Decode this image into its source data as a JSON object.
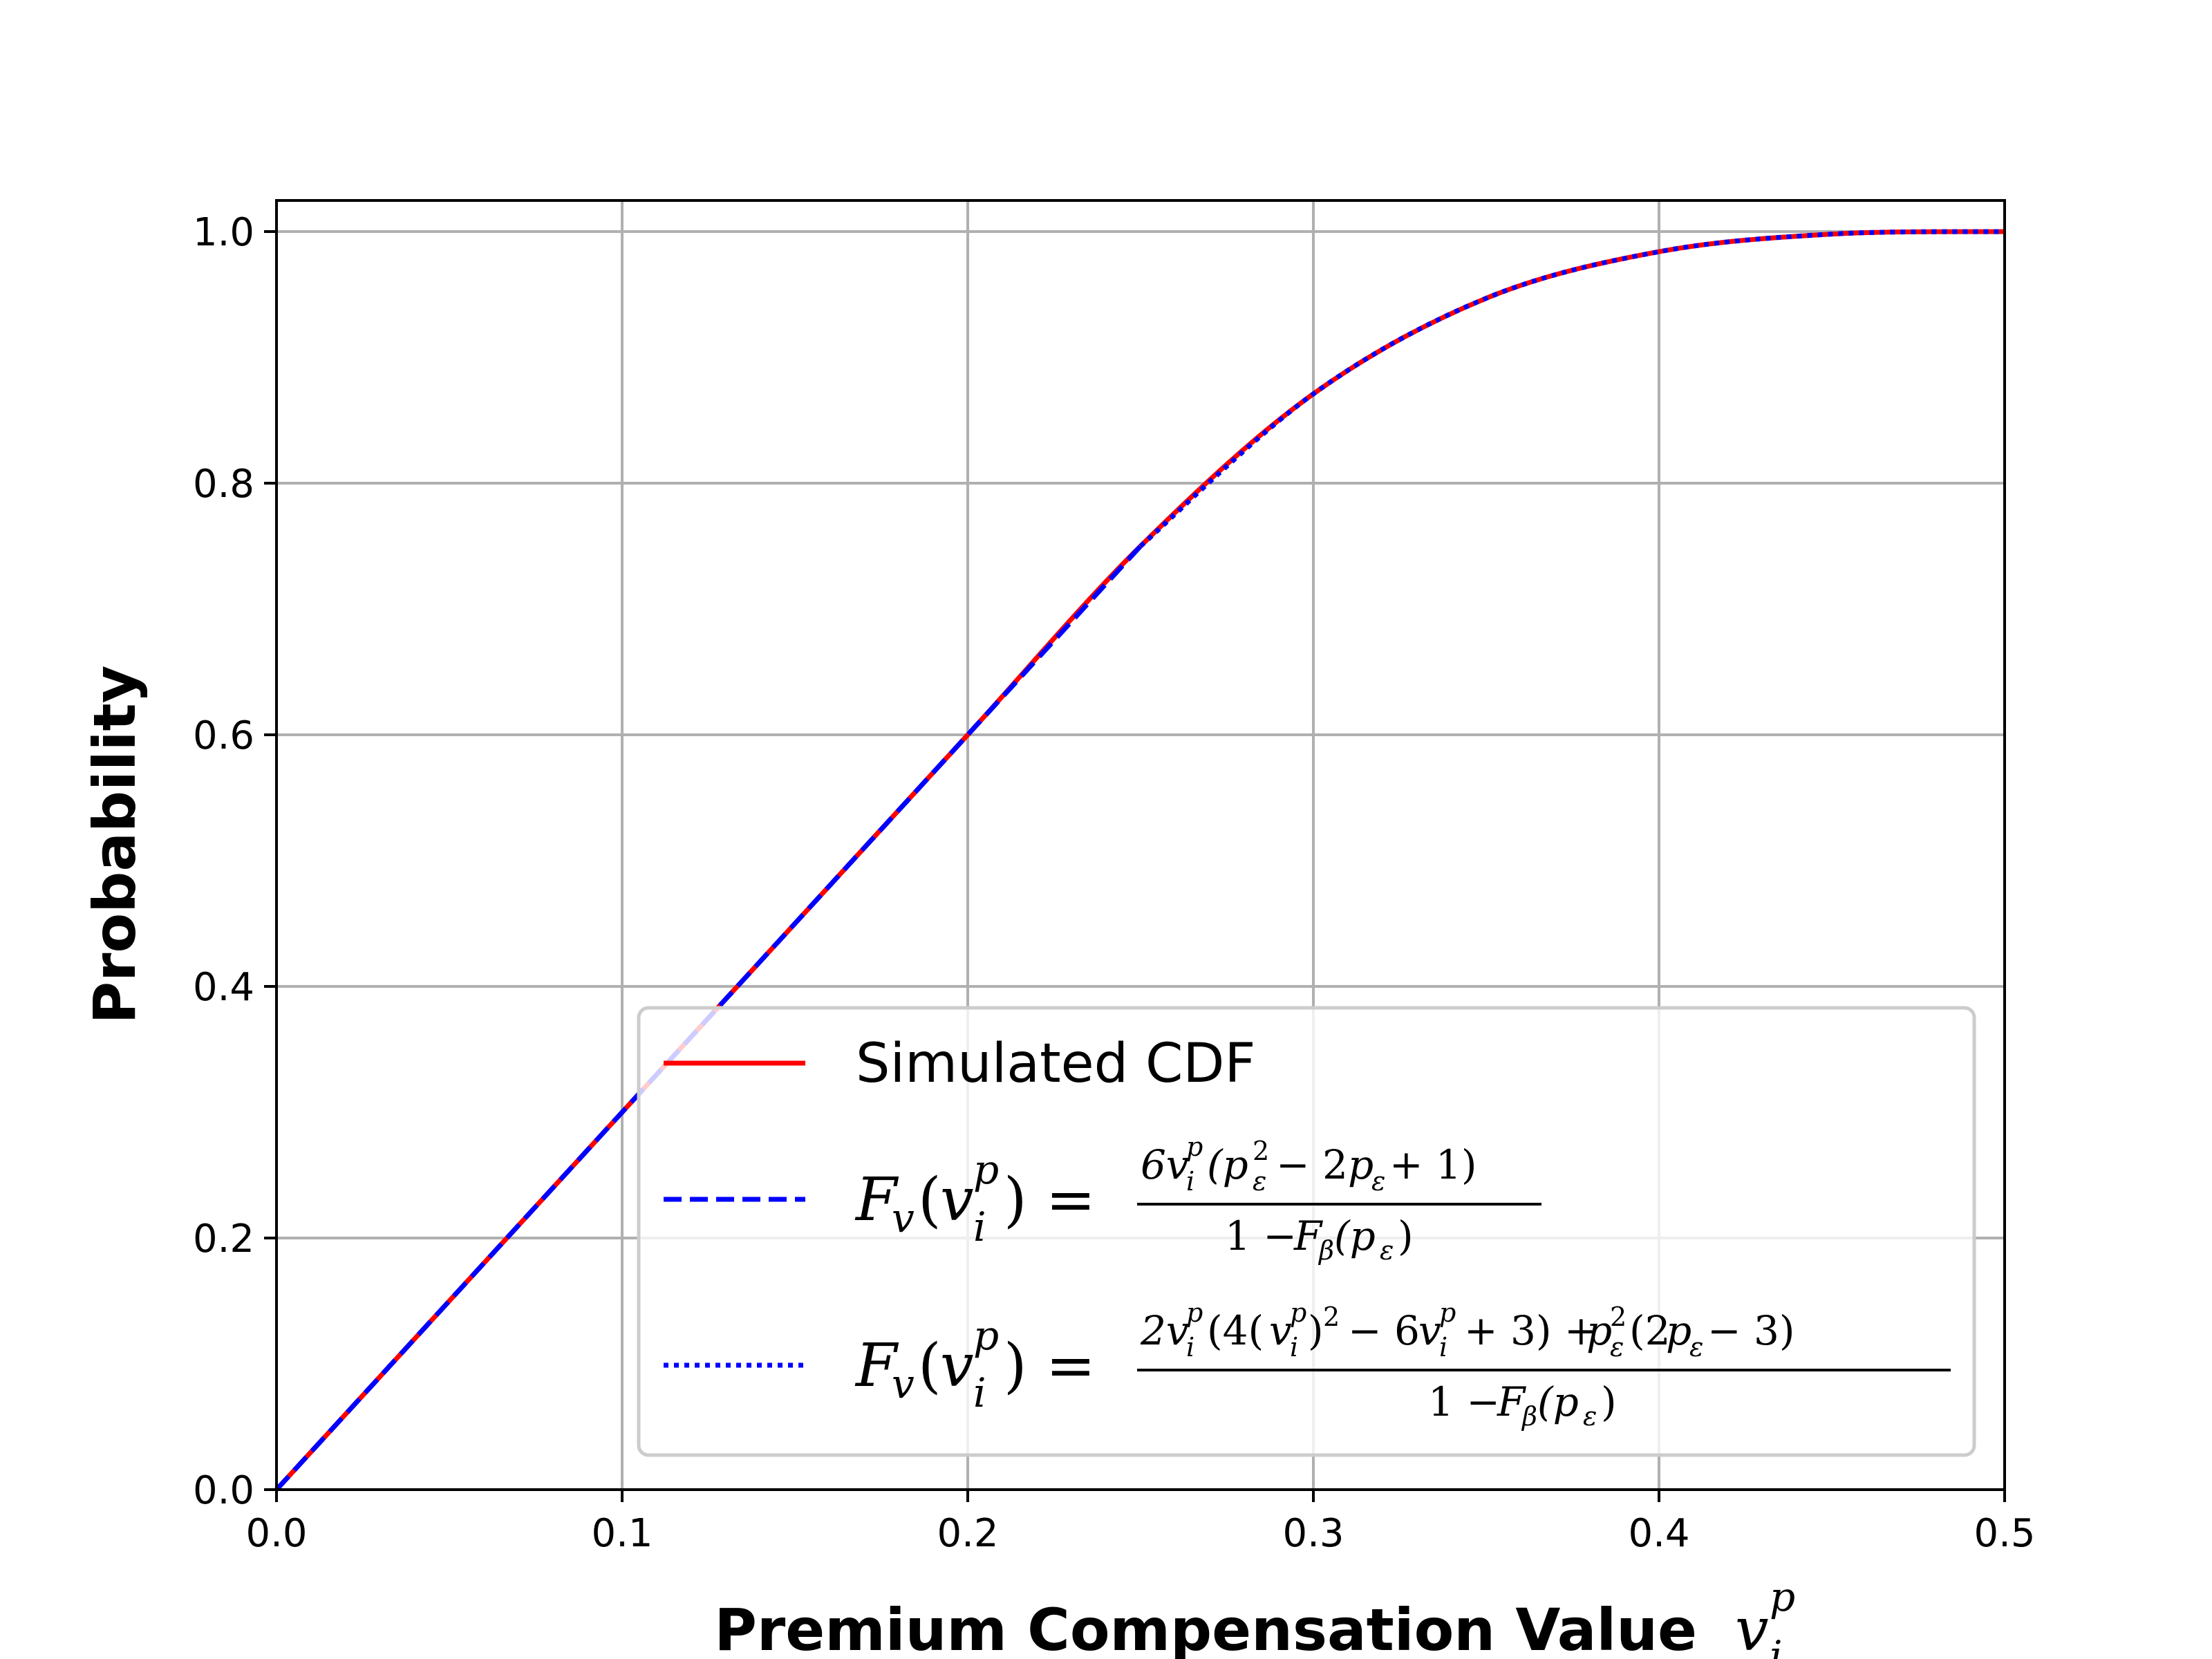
{
  "chart_data": {
    "type": "line",
    "xlabel": "Premium Compensation Value",
    "xlabel_math": "v_i^p",
    "ylabel": "Probability",
    "xlim": [
      0.0,
      0.5
    ],
    "ylim": [
      0.0,
      1.0
    ],
    "xticks": [
      "0.0",
      "0.1",
      "0.2",
      "0.3",
      "0.4",
      "0.5"
    ],
    "yticks": [
      "0.0",
      "0.2",
      "0.4",
      "0.6",
      "0.8",
      "1.0"
    ],
    "grid": true,
    "legend_position": "lower-right",
    "series": [
      {
        "name": "Simulated CDF",
        "style": "solid",
        "color": "#ff0000",
        "x": [
          0.0,
          0.05,
          0.1,
          0.15,
          0.2,
          0.25,
          0.3,
          0.35,
          0.4,
          0.45,
          0.5
        ],
        "y": [
          0.0,
          0.15,
          0.3,
          0.45,
          0.6,
          0.75,
          0.871,
          0.947,
          0.984,
          0.998,
          1.0
        ]
      },
      {
        "name": "F_v(v_i^p) = 6v_i^p(p_ε^2 − 2p_ε + 1) / (1 − F_β(p_ε))",
        "style": "dashed",
        "color": "#0000ff",
        "x": [
          0.0,
          0.05,
          0.1,
          0.15,
          0.2,
          0.25
        ],
        "y": [
          0.0,
          0.15,
          0.3,
          0.45,
          0.6,
          0.75
        ]
      },
      {
        "name": "F_v(v_i^p) = (2v_i^p(4(v_i^p)^2 − 6v_i^p + 3) + p_ε^2(2p_ε − 3)) / (1 − F_β(p_ε))",
        "style": "dotted",
        "color": "#0000ff",
        "x": [
          0.25,
          0.3,
          0.35,
          0.4,
          0.45,
          0.5
        ],
        "y": [
          0.75,
          0.871,
          0.947,
          0.984,
          0.998,
          1.0
        ]
      }
    ]
  }
}
